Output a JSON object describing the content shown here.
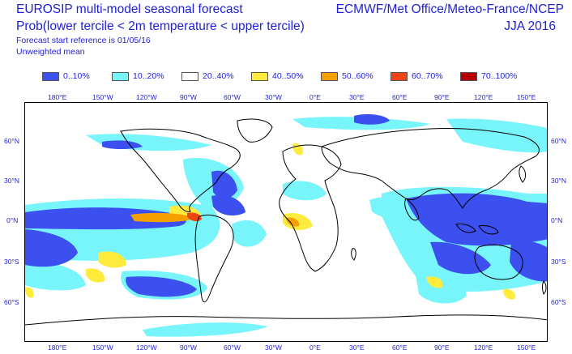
{
  "header": {
    "title_line1": "EUROSIP multi-model seasonal forecast",
    "title_line2": "Prob(lower tercile < 2m temperature < upper tercile)",
    "forecast_ref": "Forecast start reference is 01/05/16",
    "weighting": "Unweighted mean",
    "centres": "ECMWF/Met Office/Meteo-France/NCEP",
    "season": "JJA 2016"
  },
  "legend": [
    {
      "label": "0..10%",
      "color": "#3c50f0"
    },
    {
      "label": "10..20%",
      "color": "#78f5fa"
    },
    {
      "label": "20..40%",
      "color": "#ffffff"
    },
    {
      "label": "40..50%",
      "color": "#ffeb3c"
    },
    {
      "label": "50..60%",
      "color": "#f5a000"
    },
    {
      "label": "60..70%",
      "color": "#f04614"
    },
    {
      "label": "70..100%",
      "color": "#b40000"
    }
  ],
  "axes": {
    "lon_labels": [
      "180°E",
      "150°W",
      "120°W",
      "90°W",
      "60°W",
      "30°W",
      "0°E",
      "30°E",
      "60°E",
      "90°E",
      "120°E",
      "150°E"
    ],
    "lat_labels": [
      "60°N",
      "30°N",
      "0°N",
      "30°S",
      "60°S"
    ]
  }
}
